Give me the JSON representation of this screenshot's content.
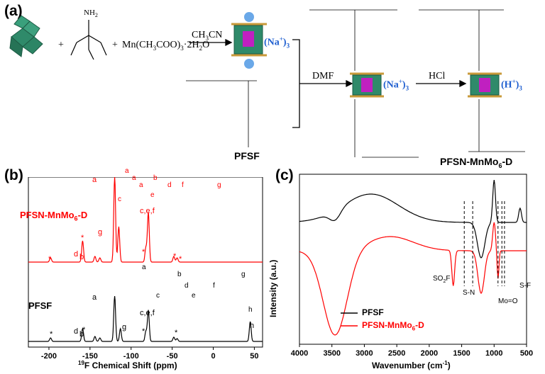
{
  "panel_a": {
    "label": "(a)",
    "reagent_plus1": "+",
    "reagent_plus2": "+",
    "amine_label": "NH",
    "amine_sub": "2",
    "mn_salt": "Mn(CH",
    "mn_salt_rest": "COO)",
    "mn_salt_tail": "·2H",
    "mn_salt_end": "O",
    "solvent1": "CH",
    "solvent1_rest": "CN",
    "na_label": "(Na",
    "na_sup": "+",
    "na_close": ")",
    "na_sub": "3",
    "h_label": "(H",
    "h_sup": "+",
    "h_close": ")",
    "h_sub": "3",
    "solvent2": "DMF",
    "acid": "HCl",
    "pfsf_name": "PFSF",
    "product_name": "PFSN-MnMo",
    "product_sub": "6",
    "product_tail": "-D"
  },
  "panel_b": {
    "label": "(b)",
    "red_name": "PFSN-MnMo",
    "red_sub": "6",
    "red_tail": "-D",
    "black_name": "PFSF",
    "xlabel_sup": "19",
    "xlabel": "F Chemical Shift (ppm)",
    "red_peak_labels": [
      "a",
      "c,e,f",
      "g",
      "d",
      "b",
      "*",
      "*",
      "*",
      "*",
      "*"
    ],
    "black_peak_labels": [
      "a",
      "c,e,f",
      "g",
      "d",
      "b",
      "h",
      "*",
      "*",
      "*",
      "*"
    ],
    "struct_red_labels": [
      "a",
      "a",
      "a",
      "b",
      "c",
      "d",
      "e",
      "f",
      "g"
    ],
    "struct_black_labels": [
      "a",
      "b",
      "c",
      "d",
      "e",
      "f",
      "g",
      "h"
    ]
  },
  "panel_c": {
    "label": "(c)",
    "ylabel": "Intensity (a.u.)",
    "xlabel": "Wavenumber (cm",
    "xlabel_sup": "-1",
    "xlabel_close": ")",
    "legend_black": "PFSF",
    "legend_red": "PFSN-MnMo",
    "legend_red_sub": "6",
    "legend_red_tail": "-D",
    "ann_so2f": "SO",
    "ann_so2f_sub": "2",
    "ann_so2f_tail": "F",
    "ann_sn": "S-N",
    "ann_moo": "Mo=O",
    "ann_sf": "S-F"
  },
  "chart_data": [
    {
      "type": "line",
      "title": "",
      "xlabel": "19F Chemical Shift (ppm)",
      "ylabel": "",
      "xlim": [
        -225,
        60
      ],
      "x_reversed": true,
      "xticks": [
        -200,
        -150,
        -100,
        -50,
        0,
        50
      ],
      "series": [
        {
          "name": "PFSN-MnMo6-D",
          "peaks_ppm": [
            -198,
            -159,
            -144,
            -138,
            -120,
            -115,
            -82,
            -79,
            -48,
            -44
          ]
        },
        {
          "name": "PFSF",
          "peaks_ppm": [
            -198,
            -159,
            -144,
            -138,
            -120,
            -113,
            -82,
            -79,
            -48,
            -44,
            45
          ]
        }
      ]
    },
    {
      "type": "line",
      "title": "",
      "xlabel": "Wavenumber (cm-1)",
      "ylabel": "Intensity (a.u.)",
      "xlim": [
        4000,
        500
      ],
      "x_reversed": true,
      "xticks": [
        4000,
        3500,
        3000,
        2500,
        2000,
        1500,
        1000,
        500
      ],
      "legend_position": "bottom-center",
      "series": [
        {
          "name": "PFSF",
          "color": "#000000",
          "key_bands_cm1": [
            3450,
            1460,
            1200,
            1150,
            980,
            800
          ]
        },
        {
          "name": "PFSN-MnMo6-D",
          "color": "#ff0000",
          "key_bands_cm1": [
            3450,
            1630,
            1350,
            1200,
            1150,
            980,
            940,
            880
          ]
        }
      ],
      "annotation_lines_cm1": [
        1460,
        1330,
        940,
        880,
        840
      ]
    }
  ],
  "colors": {
    "red": "#ff0000",
    "blue": "#1f5fd0",
    "cluster_green": "#2f8a6a",
    "ligand_tan": "#c99a3a"
  }
}
